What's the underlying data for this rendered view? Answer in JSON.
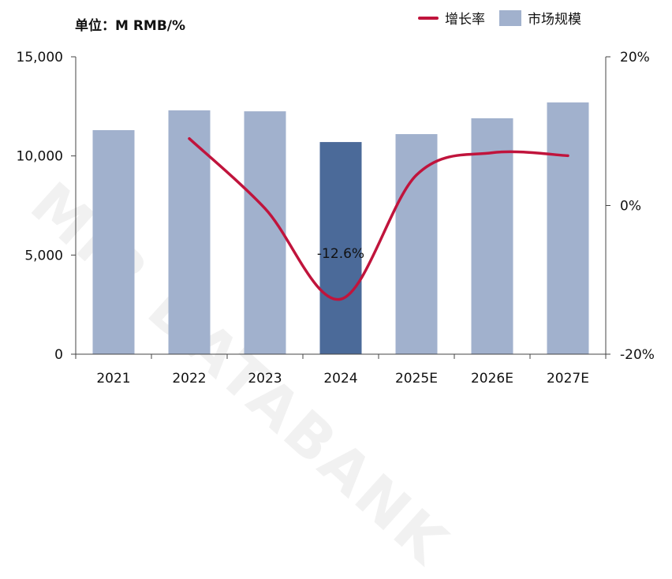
{
  "unit_label": "单位：M RMB/%",
  "watermark": "MIR DATABANK",
  "legend": [
    {
      "label": "增长率",
      "kind": "line",
      "color": "#c0143c"
    },
    {
      "label": "市场规模",
      "kind": "bar",
      "color": "#a1b1cd"
    }
  ],
  "chart_data": {
    "type": "bar",
    "categories": [
      "2021",
      "2022",
      "2023",
      "2024",
      "2025E",
      "2026E",
      "2027E"
    ],
    "series": [
      {
        "name": "市场规模",
        "type": "bar",
        "axis": "left",
        "values": [
          11300,
          12300,
          12250,
          10700,
          11100,
          11900,
          12700
        ],
        "color": "#a1b1cd",
        "highlight_index": 3,
        "highlight_color": "#4b6a99"
      },
      {
        "name": "增长率",
        "type": "line",
        "axis": "right",
        "values": [
          null,
          9.0,
          -0.4,
          -12.6,
          4.1,
          7.1,
          6.7
        ],
        "color": "#c0143c"
      }
    ],
    "annotations": [
      {
        "category": "2024",
        "text": "-12.6%"
      }
    ],
    "y_left": {
      "min": 0,
      "max": 15000,
      "ticks": [
        0,
        5000,
        10000,
        15000
      ],
      "tick_labels": [
        "0",
        "5,000",
        "10,000",
        "15,000"
      ]
    },
    "y_right": {
      "min": -20,
      "max": 20,
      "ticks": [
        -20,
        0,
        20
      ],
      "tick_labels": [
        "-20%",
        "0%",
        "20%"
      ]
    },
    "grid": false,
    "legend_position": "top-right"
  }
}
